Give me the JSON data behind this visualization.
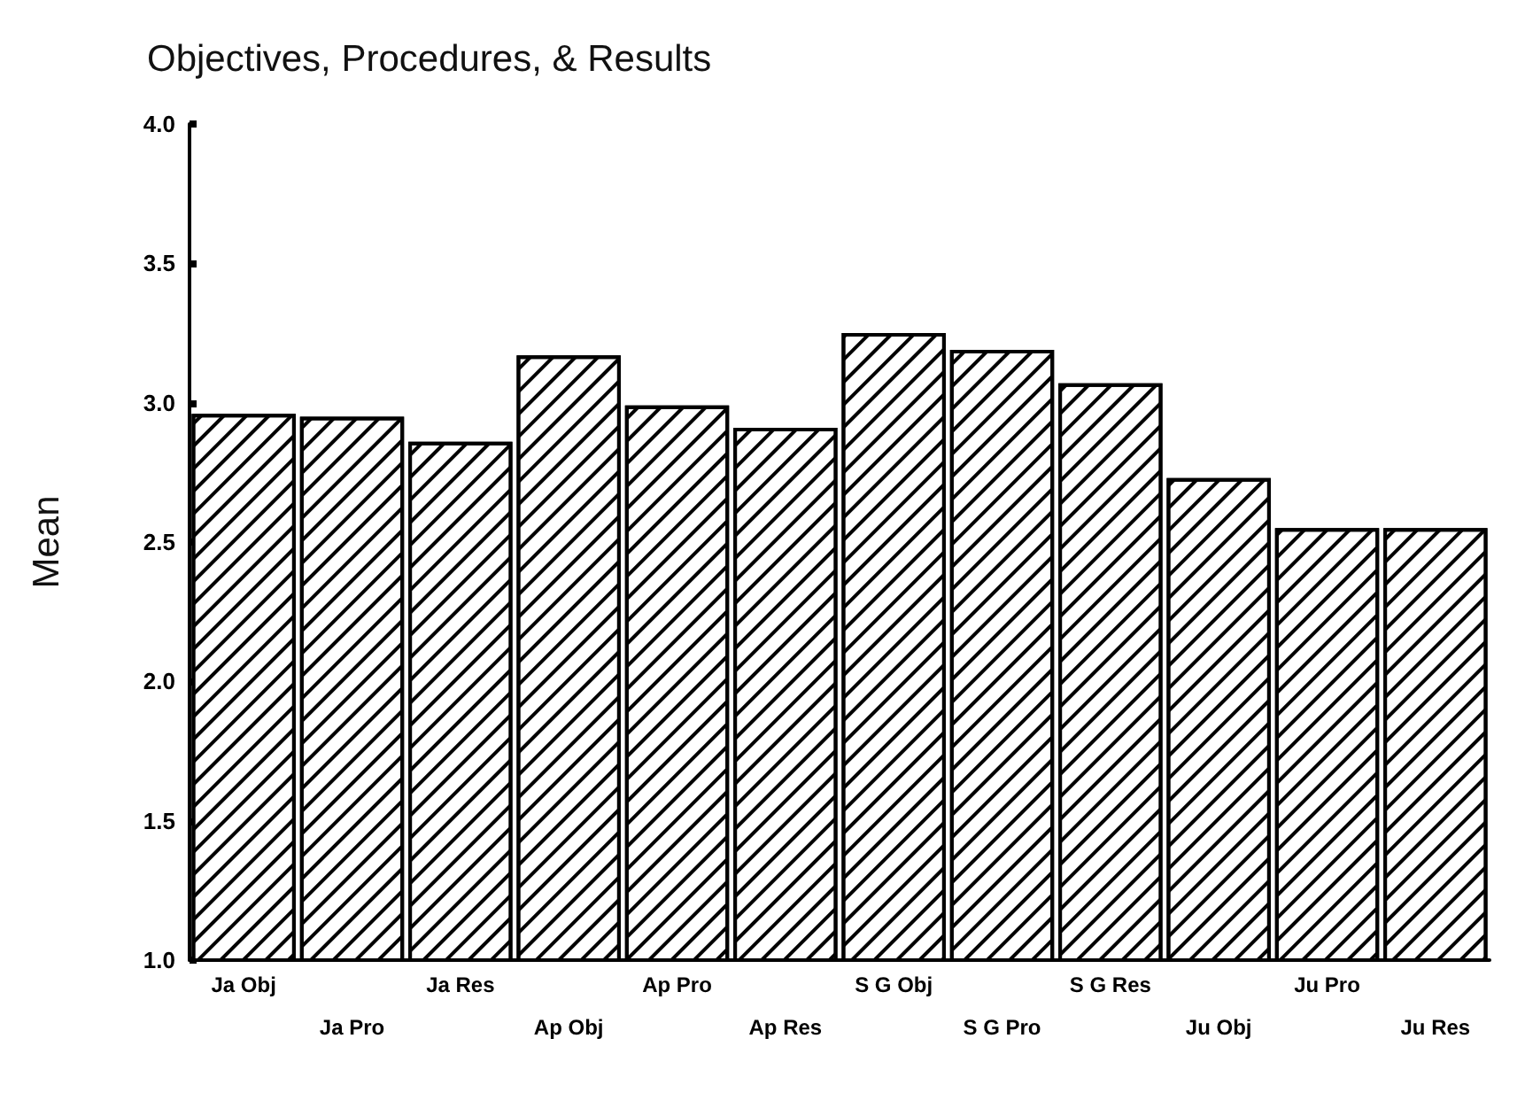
{
  "chart_data": {
    "type": "bar",
    "title": "Objectives, Procedures, & Results",
    "ylabel": "Mean",
    "categories": [
      "Ja Obj",
      "Ja Pro",
      "Ja Res",
      "Ap Obj",
      "Ap Pro",
      "Ap Res",
      "S G Obj",
      "S G Pro",
      "S G Res",
      "Ju Obj",
      "Ju Pro",
      "Ju Res"
    ],
    "values": [
      2.96,
      2.95,
      2.86,
      3.17,
      2.99,
      2.91,
      3.25,
      3.19,
      3.07,
      2.73,
      2.55,
      2.55
    ],
    "color": "#000000",
    "ylim": [
      1.0,
      4.0
    ],
    "yticks": [
      {
        "value": 1.0,
        "label": "1.0"
      },
      {
        "value": 1.5,
        "label": "1.5"
      },
      {
        "value": 2.0,
        "label": "2.0"
      },
      {
        "value": 2.5,
        "label": "2.5"
      },
      {
        "value": 3.0,
        "label": "3.0"
      },
      {
        "value": 3.5,
        "label": "3.5"
      },
      {
        "value": 4.0,
        "label": "4.0"
      }
    ],
    "grid": false
  }
}
